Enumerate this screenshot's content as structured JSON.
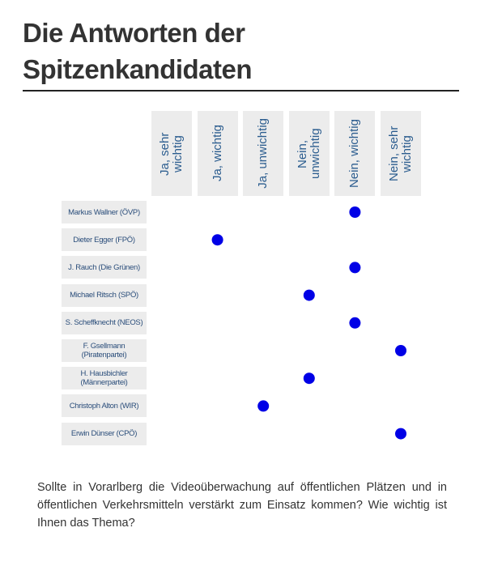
{
  "title": "Die Antworten der Spitzenkandidaten",
  "columns": [
    "Ja, sehr wichtig",
    "Ja, wichtig",
    "Ja, unwichtig",
    "Nein, unwichtig",
    "Nein, wichtig",
    "Nein, sehr wichtig"
  ],
  "rows": [
    {
      "name": "Markus Wallner (ÖVP)",
      "answer": 4
    },
    {
      "name": "Dieter Egger (FPÖ)",
      "answer": 1
    },
    {
      "name": "J. Rauch (Die Grünen)",
      "answer": 4
    },
    {
      "name": "Michael Ritsch (SPÖ)",
      "answer": 3
    },
    {
      "name": "S. Scheffknecht (NEOS)",
      "answer": 4
    },
    {
      "name": "F. Gsellmann (Piratenpartei)",
      "answer": 5
    },
    {
      "name": "H. Hausbichler (Männerpartei)",
      "answer": 3
    },
    {
      "name": "Christoph Alton (WIR)",
      "answer": 2
    },
    {
      "name": "Erwin Dünser (CPÖ)",
      "answer": 5
    }
  ],
  "question": "Sollte in Vorarlberg die Videoüberwachung auf öffentlichen Plätzen und in öffentlichen Verkehrsmitteln verstärkt zum Einsatz kommen? Wie wichtig ist Ihnen das Thema?"
}
